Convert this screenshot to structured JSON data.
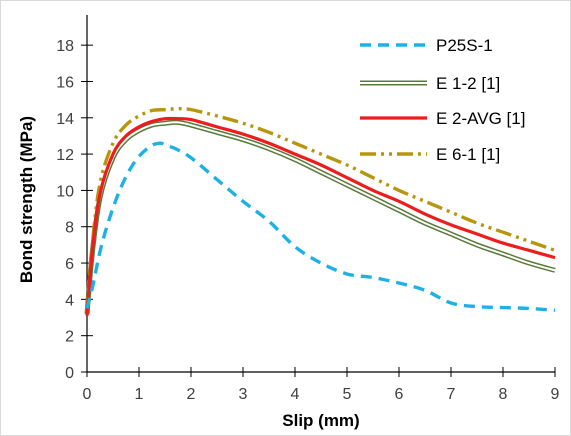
{
  "chart_data": {
    "type": "line",
    "title": "",
    "xlabel": "Slip (mm)",
    "ylabel": "Bond strength (MPa)",
    "xlim": [
      0,
      9
    ],
    "ylim": [
      0,
      19
    ],
    "xticks": [
      0,
      1,
      2,
      3,
      4,
      5,
      6,
      7,
      8,
      9
    ],
    "yticks": [
      0,
      2,
      4,
      6,
      8,
      10,
      12,
      14,
      16,
      18
    ],
    "grid": false,
    "legend_position": "top-right",
    "series": [
      {
        "name": "P25S-1",
        "color": "#1fb0e6",
        "style": "dashed",
        "x": [
          0,
          0.1,
          0.3,
          0.6,
          0.9,
          1.2,
          1.4,
          1.5,
          1.7,
          2.0,
          2.5,
          3.0,
          3.5,
          4.0,
          4.5,
          5.0,
          5.5,
          6.0,
          6.5,
          7.0,
          7.5,
          8.0,
          8.5,
          9.0
        ],
        "y": [
          3.5,
          4.6,
          7.2,
          9.8,
          11.5,
          12.4,
          12.6,
          12.5,
          12.3,
          11.8,
          10.6,
          9.4,
          8.3,
          6.9,
          6.0,
          5.4,
          5.2,
          4.9,
          4.5,
          3.8,
          3.6,
          3.55,
          3.5,
          3.4
        ]
      },
      {
        "name": "E 1-2 [1]",
        "color": "#5a7a3a",
        "style": "double",
        "x": [
          0,
          0.1,
          0.25,
          0.5,
          0.75,
          1.0,
          1.25,
          1.5,
          1.75,
          2.0,
          2.5,
          3.0,
          3.5,
          4.0,
          4.5,
          5.0,
          5.5,
          6.0,
          6.5,
          7.0,
          7.5,
          8.0,
          8.5,
          9.0
        ],
        "y": [
          3.2,
          6.5,
          9.6,
          11.8,
          12.8,
          13.3,
          13.6,
          13.7,
          13.75,
          13.6,
          13.2,
          12.8,
          12.3,
          11.7,
          11.0,
          10.3,
          9.6,
          8.9,
          8.2,
          7.6,
          7.0,
          6.5,
          6.0,
          5.6
        ]
      },
      {
        "name": "E 2-AVG [1]",
        "color": "#ee1c1c",
        "style": "solid",
        "x": [
          0,
          0.1,
          0.25,
          0.5,
          0.75,
          1.0,
          1.25,
          1.5,
          1.75,
          2.0,
          2.5,
          3.0,
          3.5,
          4.0,
          4.5,
          5.0,
          5.5,
          6.0,
          6.5,
          7.0,
          7.5,
          8.0,
          8.5,
          9.0
        ],
        "y": [
          3.1,
          6.6,
          9.8,
          12.0,
          13.0,
          13.5,
          13.8,
          13.95,
          13.95,
          13.9,
          13.5,
          13.1,
          12.6,
          12.0,
          11.4,
          10.7,
          10.0,
          9.4,
          8.7,
          8.1,
          7.6,
          7.1,
          6.7,
          6.3
        ]
      },
      {
        "name": "E 6-1 [1]",
        "color": "#b8960c",
        "style": "dash-dot-dot",
        "x": [
          0,
          0.1,
          0.25,
          0.5,
          0.75,
          1.0,
          1.25,
          1.5,
          1.75,
          2.0,
          2.5,
          3.0,
          3.5,
          4.0,
          4.5,
          5.0,
          5.5,
          6.0,
          6.5,
          7.0,
          7.5,
          8.0,
          8.5,
          9.0
        ],
        "y": [
          3.3,
          7.0,
          10.4,
          12.6,
          13.6,
          14.1,
          14.4,
          14.45,
          14.5,
          14.45,
          14.1,
          13.7,
          13.2,
          12.6,
          12.0,
          11.4,
          10.7,
          10.0,
          9.4,
          8.8,
          8.2,
          7.7,
          7.2,
          6.7
        ]
      }
    ]
  }
}
